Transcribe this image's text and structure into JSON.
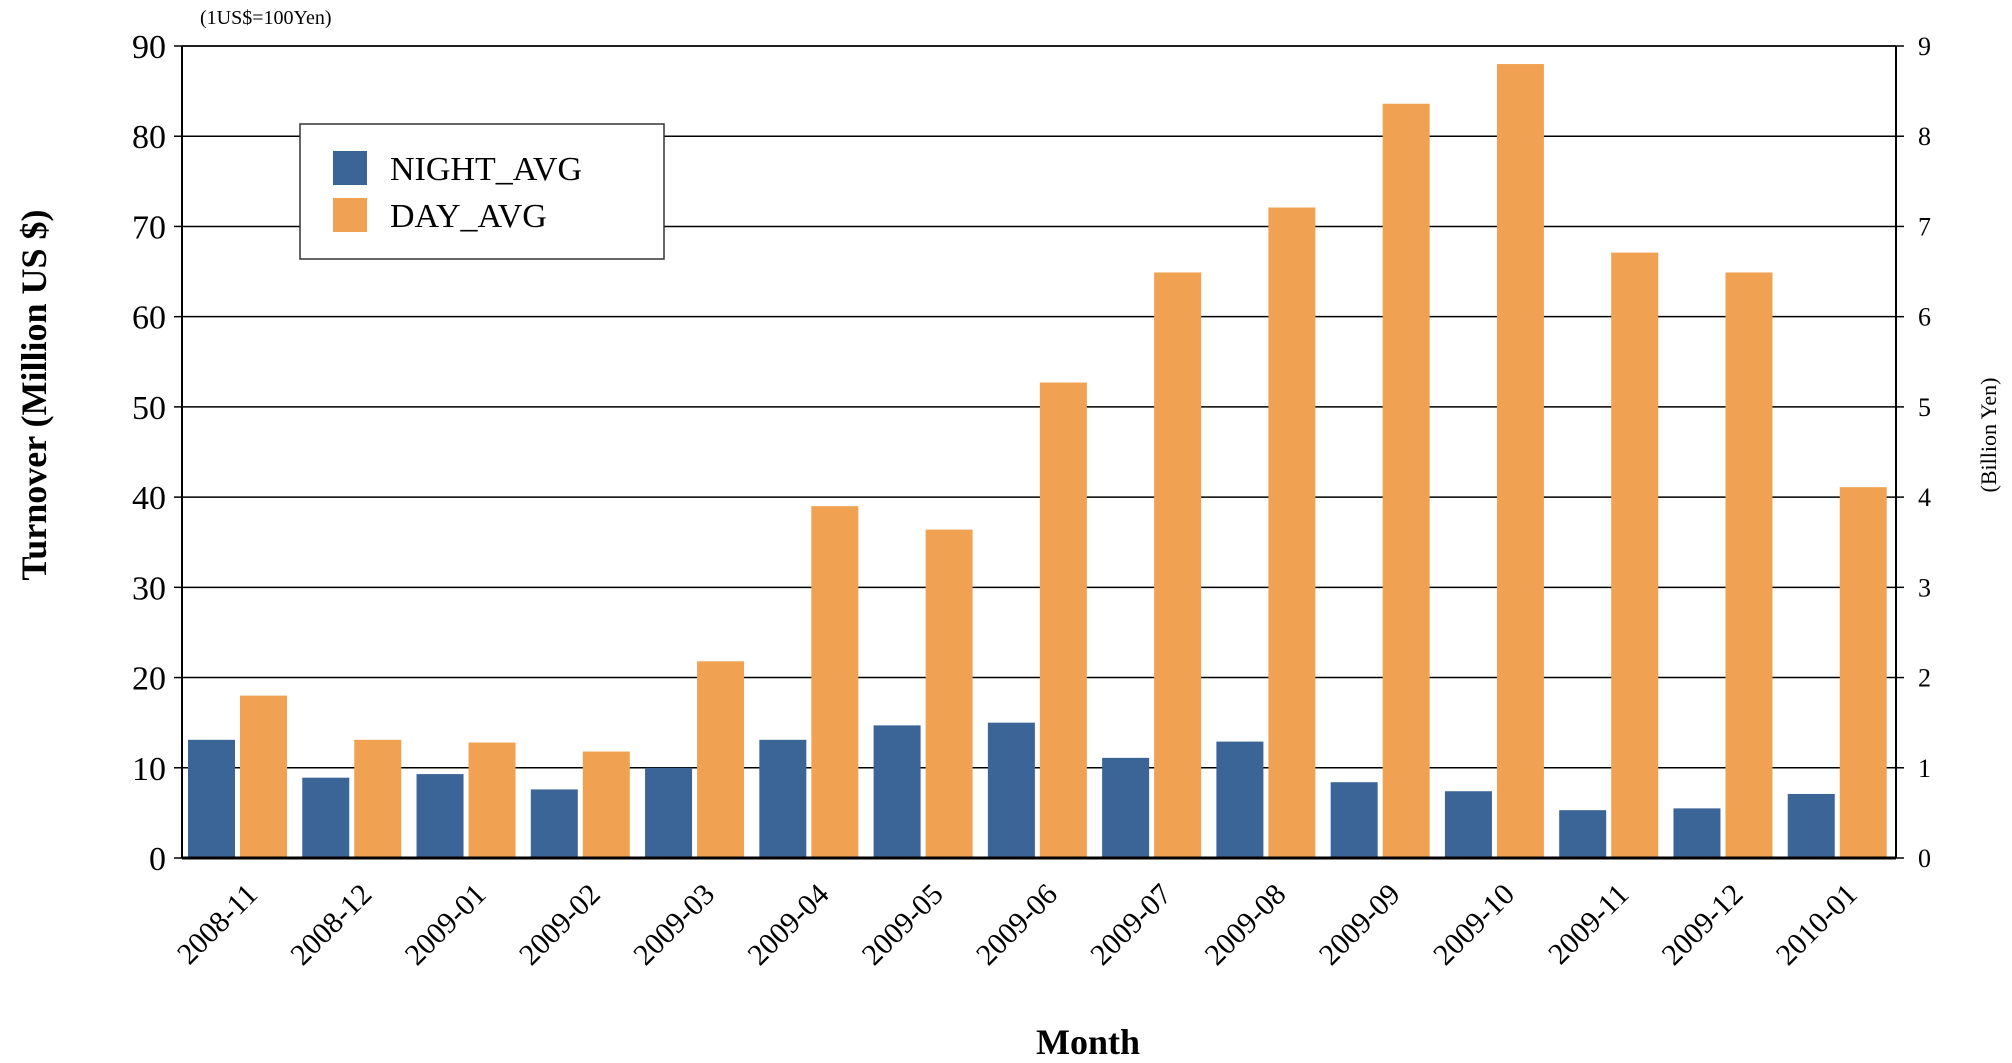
{
  "chart_data": {
    "type": "bar",
    "title": "",
    "note": "(1US$=100Yen)",
    "xlabel": "Month",
    "ylabel": "Turnover (Million US $)",
    "y2label": "(Billion Yen)",
    "ylim": [
      0,
      90
    ],
    "y2lim": [
      0,
      9
    ],
    "yticks": [
      "0",
      "10",
      "20",
      "30",
      "40",
      "50",
      "60",
      "70",
      "80",
      "90"
    ],
    "y2ticks": [
      "0",
      "1",
      "2",
      "3",
      "4",
      "5",
      "6",
      "7",
      "8",
      "9"
    ],
    "grid": true,
    "legend_position": "top-left",
    "categories": [
      "2008-11",
      "2008-12",
      "2009-01",
      "2009-02",
      "2009-03",
      "2009-04",
      "2009-05",
      "2009-06",
      "2009-07",
      "2009-08",
      "2009-09",
      "2009-10",
      "2009-11",
      "2009-12",
      "2010-01"
    ],
    "series": [
      {
        "name": "NIGHT_AVG",
        "color": "#3b6497",
        "values": [
          13.1,
          8.9,
          9.3,
          7.6,
          10.0,
          13.1,
          14.7,
          15.0,
          11.1,
          12.9,
          8.4,
          7.4,
          5.3,
          5.5,
          7.1
        ]
      },
      {
        "name": "DAY_AVG",
        "color": "#f0a252",
        "values": [
          18.0,
          13.1,
          12.8,
          11.8,
          21.8,
          39.0,
          36.4,
          52.7,
          64.9,
          72.1,
          83.6,
          88.0,
          67.1,
          64.9,
          41.1
        ]
      }
    ]
  }
}
